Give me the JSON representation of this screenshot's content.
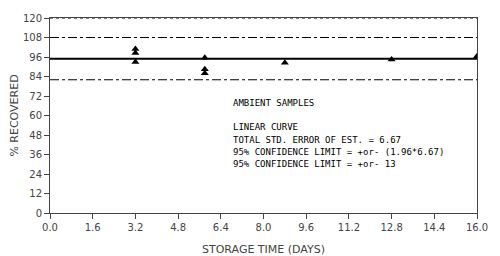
{
  "chart_data": {
    "type": "scatter",
    "xlabel": "STORAGE TIME (DAYS)",
    "ylabel": "% RECOVERED",
    "xlim": [
      0.0,
      16.0
    ],
    "ylim": [
      0,
      120
    ],
    "xticks": [
      {
        "value": 0.0,
        "label": "0.0"
      },
      1.6,
      3.2,
      4.8,
      6.4,
      {
        "value": 8.0,
        "label": "8.0"
      },
      9.6,
      11.2,
      12.8,
      14.4,
      {
        "value": 16.0,
        "label": "16.0"
      }
    ],
    "yticks": [
      0,
      12,
      24,
      36,
      48,
      60,
      72,
      84,
      96,
      108,
      120
    ],
    "grid": false,
    "series": [
      {
        "type": "hline",
        "y": 120,
        "color": "black",
        "line_style": "dotted"
      },
      {
        "type": "hline",
        "y": 108.0,
        "color": "black",
        "line_style": "dashdot"
      },
      {
        "type": "hline",
        "y": 95.0,
        "color": "black",
        "line_style": "solid"
      },
      {
        "type": "hline",
        "y": 82.0,
        "color": "black",
        "line_style": "dashdot"
      },
      {
        "type": "scatter",
        "color": "black",
        "marker": "triangle-up",
        "x": [
          3.2,
          3.2,
          3.2,
          5.8,
          5.8,
          5.8,
          8.8,
          12.8,
          16.0
        ],
        "values": [
          101.0,
          98.5,
          93.0,
          95.5,
          88.5,
          86.0,
          92.5,
          94.5,
          96.5
        ]
      }
    ],
    "annotations": [
      {
        "text": "AMBIENT SAMPLES",
        "x": 6.8,
        "y": 72
      },
      {
        "text": "LINEAR CURVE",
        "x": 6.8,
        "y": 57
      },
      {
        "text": "TOTAL STD. ERROR OF EST. = 6.67",
        "x": 6.8,
        "y": 49.5
      },
      {
        "text": "95% CONFIDENCE LIMIT = +or- (1.96*6.67)",
        "x": 6.8,
        "y": 42
      },
      {
        "text": "95% CONFIDENCE LIMIT = +or- 13",
        "x": 6.8,
        "y": 34.5
      }
    ]
  }
}
